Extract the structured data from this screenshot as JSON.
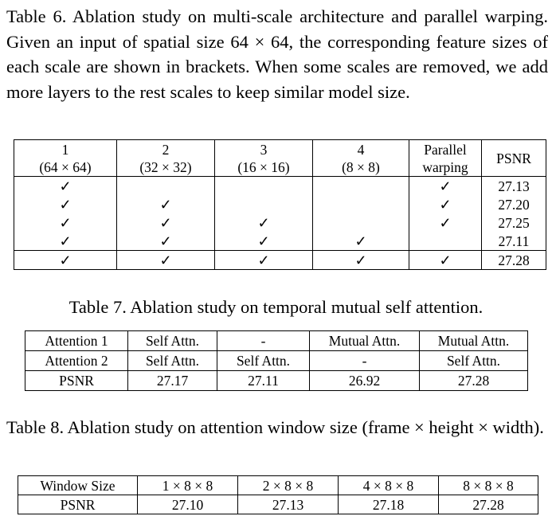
{
  "table6": {
    "caption": "Table 6.  Ablation study on multi-scale architecture and parallel warping. Given an input of spatial size 64 × 64, the corresponding feature sizes of each scale are shown in brackets.  When some scales are removed, we add more layers to the rest scales to keep similar model size.",
    "headers": [
      {
        "line1": "1",
        "line2": "(64 × 64)"
      },
      {
        "line1": "2",
        "line2": "(32 × 32)"
      },
      {
        "line1": "3",
        "line2": "(16 × 16)"
      },
      {
        "line1": "4",
        "line2": "(8 × 8)"
      },
      {
        "line1": "Parallel",
        "line2": "warping"
      },
      {
        "line1": "PSNR",
        "line2": ""
      }
    ],
    "check_mark": "✓",
    "rows": [
      {
        "cells": [
          "✓",
          "",
          "",
          "",
          "✓"
        ],
        "psnr": "27.13"
      },
      {
        "cells": [
          "✓",
          "✓",
          "",
          "",
          "✓"
        ],
        "psnr": "27.20"
      },
      {
        "cells": [
          "✓",
          "✓",
          "✓",
          "",
          "✓"
        ],
        "psnr": "27.25"
      },
      {
        "cells": [
          "✓",
          "✓",
          "✓",
          "✓",
          ""
        ],
        "psnr": "27.11"
      },
      {
        "cells": [
          "✓",
          "✓",
          "✓",
          "✓",
          "✓"
        ],
        "psnr": "27.28"
      }
    ]
  },
  "table7": {
    "caption": "Table 7. Ablation study on temporal mutual self attention.",
    "rows": [
      [
        "Attention 1",
        "Self Attn.",
        "-",
        "Mutual Attn.",
        "Mutual Attn."
      ],
      [
        "Attention 2",
        "Self Attn.",
        "Self Attn.",
        "-",
        "Self Attn."
      ],
      [
        "PSNR",
        "27.17",
        "27.11",
        "26.92",
        "27.28"
      ]
    ]
  },
  "table8": {
    "caption": "Table 8. Ablation study on attention window size (frame × height × width).",
    "rows": [
      [
        "Window Size",
        "1 × 8 × 8",
        "2 × 8 × 8",
        "4 × 8 × 8",
        "8 × 8 × 8"
      ],
      [
        "PSNR",
        "27.10",
        "27.13",
        "27.18",
        "27.28"
      ]
    ]
  }
}
